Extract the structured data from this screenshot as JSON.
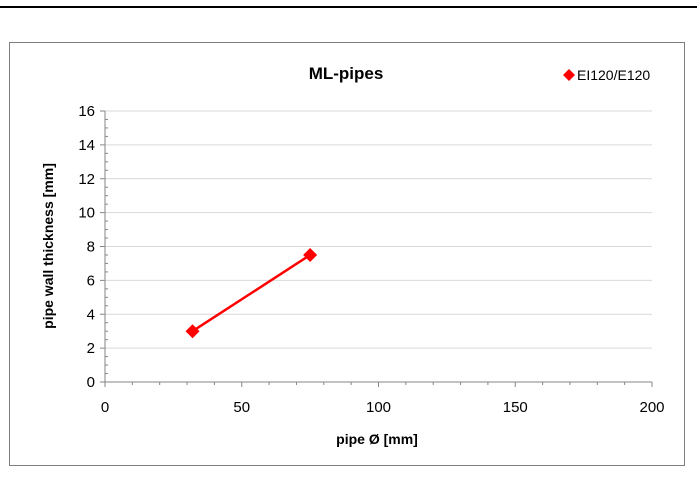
{
  "chart_data": {
    "type": "scatter",
    "title": "ML-pipes",
    "xlabel": "pipe Ø [mm]",
    "ylabel": "pipe wall thickness [mm]",
    "xlim": [
      0,
      200
    ],
    "ylim": [
      0,
      16
    ],
    "x_ticks": [
      0,
      50,
      100,
      150,
      200
    ],
    "y_ticks": [
      0,
      2,
      4,
      6,
      8,
      10,
      12,
      14,
      16
    ],
    "grid": "horizontal",
    "legend_position": "top-right",
    "series": [
      {
        "name": "EI120/E120",
        "color": "#ff0000",
        "marker": "diamond",
        "line": true,
        "points": [
          {
            "x": 32,
            "y": 3.0
          },
          {
            "x": 75,
            "y": 7.5
          }
        ]
      }
    ]
  }
}
